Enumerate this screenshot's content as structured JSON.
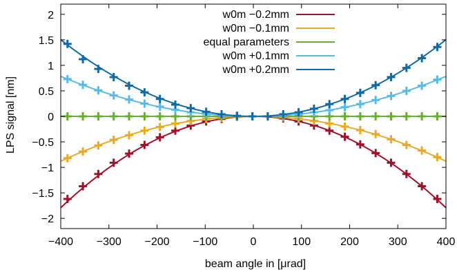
{
  "chart_data": {
    "type": "line",
    "title": "",
    "xlabel": "beam angle in [μrad]",
    "ylabel": "LPS signal [nm]",
    "xlim": [
      -400,
      400
    ],
    "ylim": [
      -2.2,
      2.2
    ],
    "xticks": [
      -400,
      -300,
      -200,
      -100,
      0,
      100,
      200,
      300,
      400
    ],
    "xtick_labels": [
      "−400",
      "−300",
      "−200",
      "−100",
      "0",
      "100",
      "200",
      "300",
      "400"
    ],
    "yticks": [
      -2,
      -1.5,
      -1,
      -0.5,
      0,
      0.5,
      1,
      1.5,
      2
    ],
    "ytick_labels": [
      "−2",
      "−1.5",
      "−1",
      "−0.5",
      "0",
      "0.5",
      "1",
      "1.5",
      "2"
    ],
    "grid": false,
    "legend_position": "top-right",
    "x": [
      -386,
      -354,
      -322,
      -290,
      -258,
      -226,
      -194,
      -162,
      -130,
      -98,
      -66,
      -34,
      -2,
      30,
      62,
      94,
      126,
      158,
      190,
      222,
      254,
      286,
      318,
      350,
      382
    ],
    "series": [
      {
        "name": "w0m −0.2mm",
        "color": "#a0112b",
        "curve": "y = -1.12e-5 * x^2",
        "points": [
          -1.62,
          -1.37,
          -1.13,
          -0.91,
          -0.73,
          -0.56,
          -0.41,
          -0.28,
          -0.18,
          -0.1,
          -0.05,
          -0.01,
          0.0,
          0.0,
          -0.04,
          -0.1,
          -0.18,
          -0.28,
          -0.4,
          -0.55,
          -0.72,
          -0.91,
          -1.13,
          -1.37,
          -1.62
        ]
      },
      {
        "name": "w0m −0.1mm",
        "color": "#e8a924",
        "curve": "y = -5.5e-6 * x^2",
        "points": [
          -0.82,
          -0.69,
          -0.57,
          -0.46,
          -0.37,
          -0.28,
          -0.21,
          -0.14,
          -0.09,
          -0.05,
          -0.03,
          -0.01,
          0.0,
          0.0,
          -0.02,
          -0.05,
          -0.09,
          -0.14,
          -0.2,
          -0.27,
          -0.35,
          -0.45,
          -0.56,
          -0.67,
          -0.8
        ]
      },
      {
        "name": "equal parameters",
        "color": "#6aad2e",
        "curve": "y = 0",
        "points": [
          0,
          0,
          0,
          0,
          0,
          0,
          0,
          0,
          0,
          0,
          0,
          0,
          0,
          0,
          0,
          0,
          0,
          0,
          0,
          0,
          0,
          0,
          0,
          0,
          0
        ]
      },
      {
        "name": "w0m +0.1mm",
        "color": "#56bbe8",
        "curve": "y = 4.9e-6 * x^2",
        "points": [
          0.73,
          0.62,
          0.51,
          0.41,
          0.33,
          0.25,
          0.19,
          0.13,
          0.08,
          0.05,
          0.02,
          0.01,
          0.0,
          0.0,
          0.02,
          0.04,
          0.08,
          0.12,
          0.18,
          0.24,
          0.32,
          0.4,
          0.5,
          0.6,
          0.72
        ]
      },
      {
        "name": "w0m +0.2mm",
        "color": "#0f6aa6",
        "curve": "y = 9.4e-6 * x^2",
        "points": [
          1.42,
          1.12,
          0.93,
          0.77,
          0.6,
          0.47,
          0.34,
          0.23,
          0.16,
          0.09,
          0.04,
          0.01,
          0.0,
          0.0,
          0.04,
          0.08,
          0.15,
          0.24,
          0.34,
          0.46,
          0.61,
          0.77,
          0.95,
          1.14,
          1.36
        ]
      }
    ]
  }
}
